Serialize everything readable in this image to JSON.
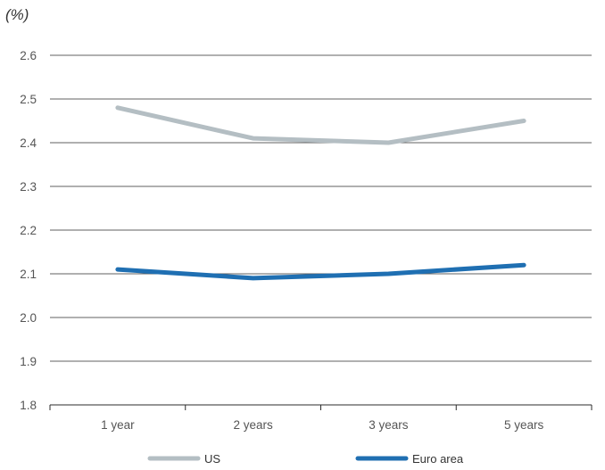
{
  "chart_data": {
    "type": "line",
    "unit_label": "(%)",
    "categories": [
      "1 year",
      "2 years",
      "3 years",
      "5 years"
    ],
    "series": [
      {
        "name": "US",
        "values": [
          2.48,
          2.41,
          2.4,
          2.45
        ],
        "color": "#b4bec3"
      },
      {
        "name": "Euro area",
        "values": [
          2.11,
          2.09,
          2.1,
          2.12
        ],
        "color": "#1f6fb2"
      }
    ],
    "ylim": [
      1.8,
      2.6
    ],
    "y_ticks": [
      "1.8",
      "1.9",
      "2.0",
      "2.1",
      "2.2",
      "2.3",
      "2.4",
      "2.5",
      "2.6"
    ],
    "grid": true,
    "legend_position": "bottom"
  }
}
